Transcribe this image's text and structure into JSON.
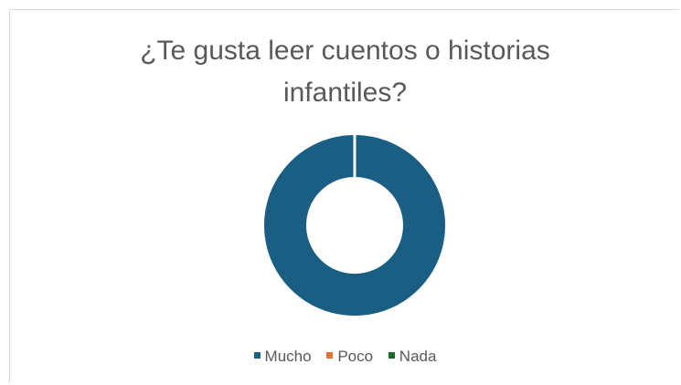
{
  "chart_data": {
    "type": "pie",
    "title": "¿Te gusta leer cuentos o historias infantiles?",
    "title_lines": [
      "¿Te gusta leer cuentos o historias",
      "infantiles?"
    ],
    "donut": true,
    "categories": [
      "Mucho",
      "Poco",
      "Nada"
    ],
    "values": [
      100,
      0,
      0
    ],
    "colors": [
      "#1b5e83",
      "#e97132",
      "#196b24"
    ],
    "legend_position": "bottom"
  }
}
